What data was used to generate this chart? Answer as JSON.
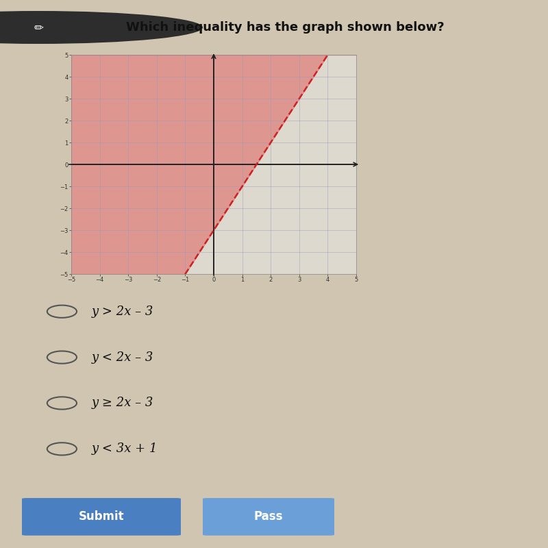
{
  "title": "Which inequality has the graph shown below?",
  "bg_color": "#cfc5b0",
  "graph_bg": "#ddd9ce",
  "grid_color": "#9099b8",
  "axis_color": "#222222",
  "shade_color": "#e06060",
  "shade_alpha": 0.55,
  "line_color": "#cc2222",
  "line_style": "--",
  "line_width": 1.8,
  "slope": 2,
  "intercept": -3,
  "xlim": [
    -5,
    5
  ],
  "ylim": [
    -5,
    5
  ],
  "xticks": [
    -5,
    -4,
    -3,
    -2,
    -1,
    0,
    1,
    2,
    3,
    4,
    5
  ],
  "yticks": [
    -5,
    -4,
    -3,
    -2,
    -1,
    0,
    1,
    2,
    3,
    4,
    5
  ],
  "choices": [
    "y > 2x – 3",
    "y < 2x – 3",
    "y ≥ 2x – 3",
    "y < 3x + 1"
  ],
  "icon_color": "#333333",
  "submit_color": "#4a7fc1",
  "pass_color": "#6a9fd8",
  "button_text_color": "#ffffff"
}
